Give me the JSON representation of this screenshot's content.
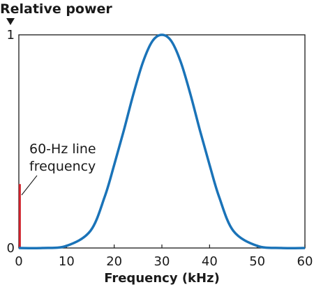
{
  "chart_data": {
    "type": "line",
    "title": "",
    "ylabel": "Relative power",
    "xlabel": "Frequency (kHz)",
    "xlim": [
      0,
      60
    ],
    "ylim": [
      0,
      1
    ],
    "x_ticks": [
      0,
      10,
      20,
      30,
      40,
      50,
      60
    ],
    "y_ticks": [
      {
        "value": 0,
        "label": "0"
      },
      {
        "value": 1,
        "label": "1"
      }
    ],
    "grid": false,
    "legend": "none",
    "series": [
      {
        "color": "#1a73b8",
        "x": [
          0,
          5,
          10,
          15,
          18,
          20,
          22,
          24,
          26,
          28,
          30,
          32,
          34,
          36,
          38,
          40,
          42,
          45,
          50,
          55,
          60
        ],
        "y": [
          0.0,
          0.0,
          0.01,
          0.08,
          0.24,
          0.39,
          0.55,
          0.72,
          0.87,
          0.97,
          1.0,
          0.97,
          0.87,
          0.72,
          0.55,
          0.39,
          0.24,
          0.08,
          0.01,
          0.0,
          0.0
        ]
      }
    ],
    "line_marker": {
      "x": 0.2,
      "y": 0.3,
      "color": "#d0202a"
    },
    "annotations": [
      {
        "lines": [
          "60-Hz line",
          "frequency"
        ]
      }
    ]
  }
}
